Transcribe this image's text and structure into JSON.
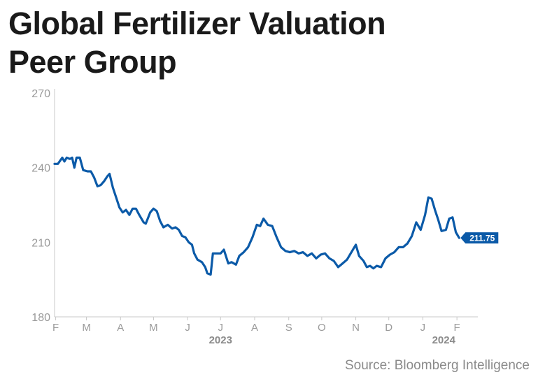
{
  "title_lines": [
    "Global Fertilizer Valuation",
    "Peer Group"
  ],
  "source": "Source: Bloomberg Intelligence",
  "colors": {
    "line": "#0b5aa8",
    "axis": "#c8c8c8",
    "tick_text": "#9a9a9a",
    "label_bg": "#0b5aa8",
    "label_text": "#ffffff"
  },
  "chart_data": {
    "type": "line",
    "title": "Global Fertilizer Valuation Peer Group",
    "xlabel": "",
    "ylabel": "",
    "ylim": [
      180,
      270
    ],
    "yticks": [
      180,
      210,
      240,
      270
    ],
    "xlim": [
      "2023-01-31",
      "2024-02-20"
    ],
    "x_ticks": [
      {
        "date": "2023-02-01",
        "label": "F"
      },
      {
        "date": "2023-03-01",
        "label": "M"
      },
      {
        "date": "2023-04-01",
        "label": "A"
      },
      {
        "date": "2023-05-01",
        "label": "M"
      },
      {
        "date": "2023-06-01",
        "label": "J"
      },
      {
        "date": "2023-07-01",
        "label": "J"
      },
      {
        "date": "2023-08-01",
        "label": "A"
      },
      {
        "date": "2023-09-01",
        "label": "S"
      },
      {
        "date": "2023-10-01",
        "label": "O"
      },
      {
        "date": "2023-11-01",
        "label": "N"
      },
      {
        "date": "2023-12-01",
        "label": "D"
      },
      {
        "date": "2024-01-01",
        "label": "J"
      },
      {
        "date": "2024-02-01",
        "label": "F"
      }
    ],
    "year_labels": [
      {
        "date": "2023-07-01",
        "label": "2023"
      },
      {
        "date": "2024-01-20",
        "label": "2024"
      }
    ],
    "last_value_label": "211.75",
    "grid": false,
    "series": [
      {
        "values": [
          [
            "2023-01-31",
            241.5
          ],
          [
            "2023-02-03",
            241.5
          ],
          [
            "2023-02-07",
            244
          ],
          [
            "2023-02-09",
            242.5
          ],
          [
            "2023-02-11",
            244
          ],
          [
            "2023-02-14",
            243.5
          ],
          [
            "2023-02-16",
            244
          ],
          [
            "2023-02-18",
            240
          ],
          [
            "2023-02-20",
            244
          ],
          [
            "2023-02-23",
            244
          ],
          [
            "2023-02-26",
            239
          ],
          [
            "2023-03-02",
            238.5
          ],
          [
            "2023-03-05",
            238.5
          ],
          [
            "2023-03-08",
            236
          ],
          [
            "2023-03-11",
            232.5
          ],
          [
            "2023-03-14",
            233
          ],
          [
            "2023-03-17",
            234.5
          ],
          [
            "2023-03-20",
            236.5
          ],
          [
            "2023-03-22",
            237.5
          ],
          [
            "2023-03-25",
            232
          ],
          [
            "2023-03-28",
            228
          ],
          [
            "2023-03-31",
            224
          ],
          [
            "2023-04-03",
            222
          ],
          [
            "2023-04-06",
            223
          ],
          [
            "2023-04-09",
            221
          ],
          [
            "2023-04-12",
            223.5
          ],
          [
            "2023-04-15",
            223.5
          ],
          [
            "2023-04-18",
            221
          ],
          [
            "2023-04-22",
            218
          ],
          [
            "2023-04-24",
            217.5
          ],
          [
            "2023-04-28",
            222
          ],
          [
            "2023-05-01",
            223.5
          ],
          [
            "2023-05-04",
            222.5
          ],
          [
            "2023-05-07",
            218.5
          ],
          [
            "2023-05-10",
            216
          ],
          [
            "2023-05-14",
            217
          ],
          [
            "2023-05-18",
            215.5
          ],
          [
            "2023-05-21",
            216
          ],
          [
            "2023-05-24",
            215
          ],
          [
            "2023-05-27",
            212.5
          ],
          [
            "2023-05-30",
            212
          ],
          [
            "2023-06-02",
            210
          ],
          [
            "2023-06-05",
            209
          ],
          [
            "2023-06-07",
            205.5
          ],
          [
            "2023-06-10",
            203
          ],
          [
            "2023-06-14",
            202
          ],
          [
            "2023-06-17",
            200
          ],
          [
            "2023-06-19",
            197.5
          ],
          [
            "2023-06-22",
            197
          ],
          [
            "2023-06-24",
            205.5
          ],
          [
            "2023-06-27",
            205.5
          ],
          [
            "2023-07-01",
            205.5
          ],
          [
            "2023-07-04",
            207
          ],
          [
            "2023-07-08",
            201.5
          ],
          [
            "2023-07-11",
            202
          ],
          [
            "2023-07-15",
            201
          ],
          [
            "2023-07-18",
            204.5
          ],
          [
            "2023-07-22",
            206
          ],
          [
            "2023-07-26",
            208
          ],
          [
            "2023-07-30",
            212
          ],
          [
            "2023-08-03",
            217
          ],
          [
            "2023-08-06",
            216.5
          ],
          [
            "2023-08-09",
            219.5
          ],
          [
            "2023-08-13",
            217
          ],
          [
            "2023-08-17",
            216.5
          ],
          [
            "2023-08-21",
            212
          ],
          [
            "2023-08-25",
            208
          ],
          [
            "2023-08-29",
            206.5
          ],
          [
            "2023-09-02",
            206
          ],
          [
            "2023-09-06",
            206.5
          ],
          [
            "2023-09-10",
            205.5
          ],
          [
            "2023-09-14",
            206
          ],
          [
            "2023-09-18",
            204.5
          ],
          [
            "2023-09-22",
            205.5
          ],
          [
            "2023-09-26",
            203.5
          ],
          [
            "2023-09-30",
            205
          ],
          [
            "2023-10-04",
            205.5
          ],
          [
            "2023-10-08",
            203.5
          ],
          [
            "2023-10-12",
            202.5
          ],
          [
            "2023-10-16",
            200
          ],
          [
            "2023-10-20",
            201.5
          ],
          [
            "2023-10-24",
            203
          ],
          [
            "2023-10-28",
            206
          ],
          [
            "2023-11-01",
            209
          ],
          [
            "2023-11-04",
            204.5
          ],
          [
            "2023-11-08",
            202.5
          ],
          [
            "2023-11-11",
            200
          ],
          [
            "2023-11-14",
            200.5
          ],
          [
            "2023-11-17",
            199.5
          ],
          [
            "2023-11-20",
            200.5
          ],
          [
            "2023-11-24",
            200
          ],
          [
            "2023-11-28",
            203.5
          ],
          [
            "2023-12-02",
            205
          ],
          [
            "2023-12-06",
            206
          ],
          [
            "2023-12-10",
            208
          ],
          [
            "2023-12-14",
            208
          ],
          [
            "2023-12-18",
            209.5
          ],
          [
            "2023-12-22",
            212.5
          ],
          [
            "2023-12-26",
            218
          ],
          [
            "2023-12-30",
            215
          ],
          [
            "2024-01-03",
            221
          ],
          [
            "2024-01-06",
            228
          ],
          [
            "2024-01-09",
            227.5
          ],
          [
            "2024-01-12",
            223
          ],
          [
            "2024-01-15",
            219
          ],
          [
            "2024-01-18",
            214.5
          ],
          [
            "2024-01-22",
            215
          ],
          [
            "2024-01-25",
            219.5
          ],
          [
            "2024-01-28",
            220
          ],
          [
            "2024-01-31",
            214
          ],
          [
            "2024-02-03",
            211.75
          ]
        ]
      }
    ]
  }
}
